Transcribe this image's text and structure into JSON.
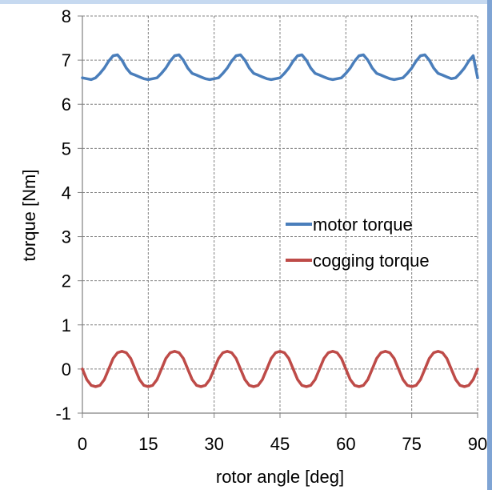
{
  "chart_data": {
    "type": "line",
    "xlabel": "rotor angle [deg]",
    "ylabel": "torque [Nm]",
    "xlim": [
      0,
      90
    ],
    "ylim": [
      -1,
      8
    ],
    "xticks": [
      "0",
      "15",
      "30",
      "45",
      "60",
      "75",
      "90"
    ],
    "yticks": [
      "-1",
      "0",
      "1",
      "2",
      "3",
      "4",
      "5",
      "6",
      "7",
      "8"
    ],
    "grid": true,
    "legend_position": "right",
    "series": [
      {
        "name": "motor torque",
        "color": "#4a7ebb",
        "x": [
          0,
          1,
          2,
          3,
          4,
          5,
          6,
          7,
          8,
          9,
          10,
          11,
          12,
          13,
          14,
          15,
          16,
          17,
          18,
          19,
          20,
          21,
          22,
          23,
          24,
          25,
          26,
          27,
          28,
          29,
          30,
          31,
          32,
          33,
          34,
          35,
          36,
          37,
          38,
          39,
          40,
          41,
          42,
          43,
          44,
          45,
          46,
          47,
          48,
          49,
          50,
          51,
          52,
          53,
          54,
          55,
          56,
          57,
          58,
          59,
          60,
          61,
          62,
          63,
          64,
          65,
          66,
          67,
          68,
          69,
          70,
          71,
          72,
          73,
          74,
          75,
          76,
          77,
          78,
          79,
          80,
          81,
          82,
          83,
          84,
          85,
          86,
          87,
          88,
          89,
          90
        ],
        "values": [
          6.6,
          6.58,
          6.56,
          6.6,
          6.7,
          6.82,
          6.98,
          7.1,
          7.12,
          7.0,
          6.82,
          6.7,
          6.66,
          6.62,
          6.58,
          6.56,
          6.58,
          6.6,
          6.7,
          6.82,
          6.98,
          7.1,
          7.12,
          7.0,
          6.82,
          6.7,
          6.66,
          6.62,
          6.58,
          6.56,
          6.58,
          6.6,
          6.7,
          6.82,
          6.98,
          7.1,
          7.12,
          7.0,
          6.82,
          6.7,
          6.66,
          6.62,
          6.58,
          6.56,
          6.58,
          6.6,
          6.7,
          6.82,
          6.98,
          7.1,
          7.12,
          7.0,
          6.82,
          6.7,
          6.66,
          6.62,
          6.58,
          6.56,
          6.58,
          6.6,
          6.7,
          6.82,
          6.98,
          7.1,
          7.12,
          7.0,
          6.82,
          6.7,
          6.66,
          6.62,
          6.58,
          6.56,
          6.58,
          6.6,
          6.7,
          6.82,
          6.98,
          7.1,
          7.12,
          7.0,
          6.82,
          6.7,
          6.66,
          6.62,
          6.58,
          6.6,
          6.7,
          6.82,
          6.98,
          7.1,
          6.6
        ]
      },
      {
        "name": "cogging torque",
        "color": "#be4b48",
        "x": [
          0,
          1,
          2,
          3,
          4,
          5,
          6,
          7,
          8,
          9,
          10,
          11,
          12,
          13,
          14,
          15,
          16,
          17,
          18,
          19,
          20,
          21,
          22,
          23,
          24,
          25,
          26,
          27,
          28,
          29,
          30,
          31,
          32,
          33,
          34,
          35,
          36,
          37,
          38,
          39,
          40,
          41,
          42,
          43,
          44,
          45,
          46,
          47,
          48,
          49,
          50,
          51,
          52,
          53,
          54,
          55,
          56,
          57,
          58,
          59,
          60,
          61,
          62,
          63,
          64,
          65,
          66,
          67,
          68,
          69,
          70,
          71,
          72,
          73,
          74,
          75,
          76,
          77,
          78,
          79,
          80,
          81,
          82,
          83,
          84,
          85,
          86,
          87,
          88,
          89,
          90
        ],
        "values": [
          0.0,
          -0.24,
          -0.37,
          -0.4,
          -0.37,
          -0.24,
          0.0,
          0.24,
          0.37,
          0.4,
          0.37,
          0.24,
          0.0,
          -0.24,
          -0.37,
          -0.4,
          -0.37,
          -0.24,
          0.0,
          0.24,
          0.37,
          0.4,
          0.37,
          0.24,
          0.0,
          -0.24,
          -0.37,
          -0.4,
          -0.37,
          -0.24,
          0.0,
          0.24,
          0.37,
          0.4,
          0.37,
          0.24,
          0.0,
          -0.24,
          -0.37,
          -0.4,
          -0.37,
          -0.24,
          0.0,
          0.24,
          0.37,
          0.4,
          0.37,
          0.24,
          0.0,
          -0.24,
          -0.37,
          -0.4,
          -0.37,
          -0.24,
          0.0,
          0.24,
          0.37,
          0.4,
          0.37,
          0.24,
          0.0,
          -0.24,
          -0.37,
          -0.4,
          -0.37,
          -0.24,
          0.0,
          0.24,
          0.37,
          0.4,
          0.37,
          0.24,
          0.0,
          -0.24,
          -0.37,
          -0.4,
          -0.37,
          -0.24,
          0.0,
          0.24,
          0.37,
          0.4,
          0.37,
          0.24,
          0.0,
          -0.24,
          -0.37,
          -0.4,
          -0.37,
          -0.24,
          0.0
        ]
      }
    ]
  }
}
